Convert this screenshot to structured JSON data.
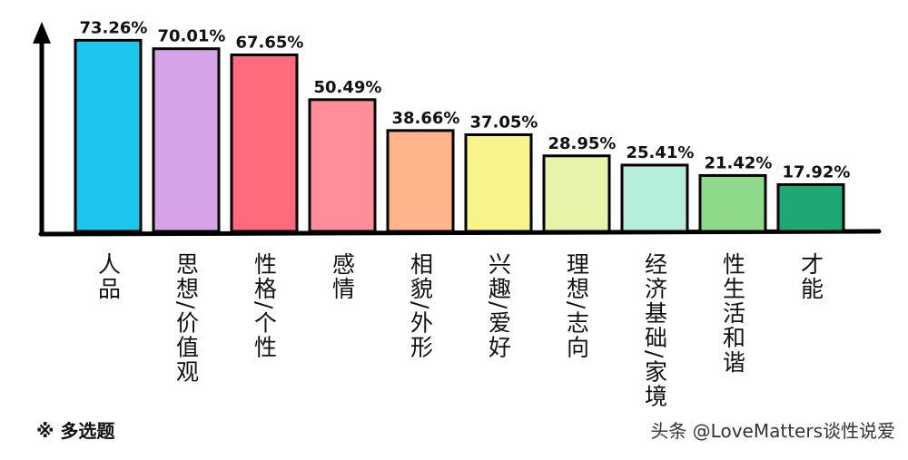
{
  "chart_data": {
    "type": "bar",
    "categories": [
      "人品",
      "思想/价值观",
      "性格/个性",
      "感情",
      "相貌/外形",
      "兴趣/爱好",
      "理想/志向",
      "经济基础/家境",
      "性生活和谐",
      "才能"
    ],
    "values": [
      73.26,
      70.01,
      67.65,
      50.49,
      38.66,
      37.05,
      28.95,
      25.41,
      21.42,
      17.92
    ],
    "value_labels": [
      "73.26%",
      "70.01%",
      "67.65%",
      "50.49%",
      "38.66%",
      "37.05%",
      "28.95%",
      "25.41%",
      "21.42%",
      "17.92%"
    ],
    "colors": [
      "#1ec6ee",
      "#d6a3e6",
      "#ff6a7c",
      "#ff8e9a",
      "#ffb48c",
      "#f7f48c",
      "#e6f5a9",
      "#b6efd9",
      "#8fd98b",
      "#1fa873"
    ],
    "ylim": [
      0,
      80
    ],
    "annotations": [
      "※ 多选题",
      "头条 @LoveMatters谈性说爱"
    ]
  }
}
